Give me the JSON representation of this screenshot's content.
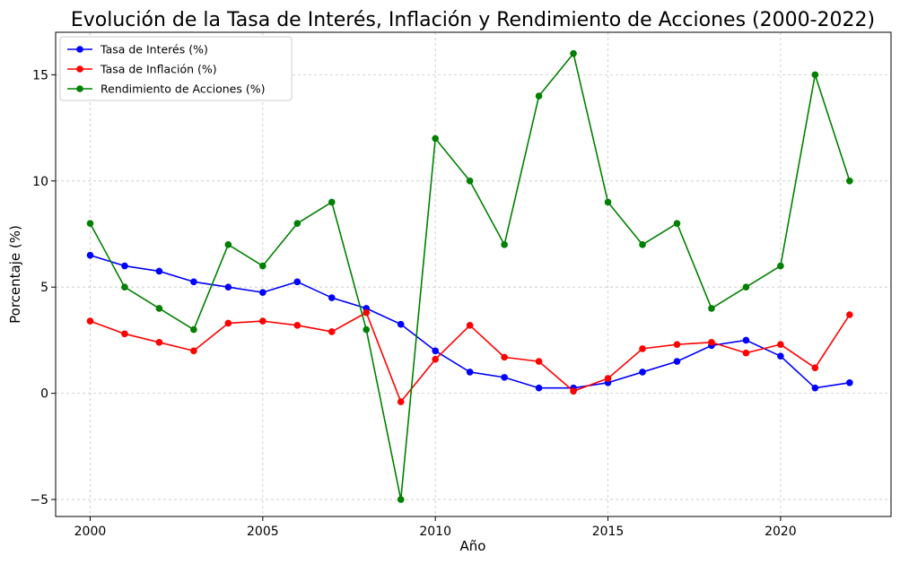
{
  "chart_data": {
    "type": "line",
    "title": "Evolución de la Tasa de Interés, Inflación y Rendimiento de Acciones (2000-2022)",
    "xlabel": "Año",
    "ylabel": "Porcentaje (%)",
    "xlim": [
      1999,
      2023.2
    ],
    "ylim": [
      -5.8,
      17
    ],
    "x_ticks": [
      2000,
      2005,
      2010,
      2015,
      2020
    ],
    "y_ticks": [
      -5,
      0,
      5,
      10,
      15
    ],
    "y_tick_labels": [
      "−5",
      "0",
      "5",
      "10",
      "15"
    ],
    "grid": true,
    "legend_position": "top-left",
    "x": [
      2000,
      2001,
      2002,
      2003,
      2004,
      2005,
      2006,
      2007,
      2008,
      2009,
      2010,
      2011,
      2012,
      2013,
      2014,
      2015,
      2016,
      2017,
      2018,
      2019,
      2020,
      2021,
      2022
    ],
    "series": [
      {
        "name": "Tasa de Interés (%)",
        "color": "#0000ff",
        "values": [
          6.5,
          6.0,
          5.75,
          5.25,
          5.0,
          4.75,
          5.25,
          4.5,
          4.0,
          3.25,
          2.0,
          1.0,
          0.75,
          0.25,
          0.25,
          0.5,
          1.0,
          1.5,
          2.25,
          2.5,
          1.75,
          0.25,
          0.5
        ]
      },
      {
        "name": "Tasa de Inflación (%)",
        "color": "#ff0000",
        "values": [
          3.4,
          2.8,
          2.4,
          2.0,
          3.3,
          3.4,
          3.2,
          2.9,
          3.8,
          -0.4,
          1.6,
          3.2,
          1.7,
          1.5,
          0.1,
          0.7,
          2.1,
          2.3,
          2.4,
          1.9,
          2.3,
          1.2,
          3.7
        ]
      },
      {
        "name": "Rendimiento de Acciones (%)",
        "color": "#008000",
        "values": [
          8,
          5,
          4,
          3,
          7,
          6,
          8,
          9,
          3,
          -5,
          12,
          10,
          7,
          14,
          16,
          9,
          7,
          8,
          4,
          5,
          6,
          15,
          10
        ]
      }
    ]
  }
}
